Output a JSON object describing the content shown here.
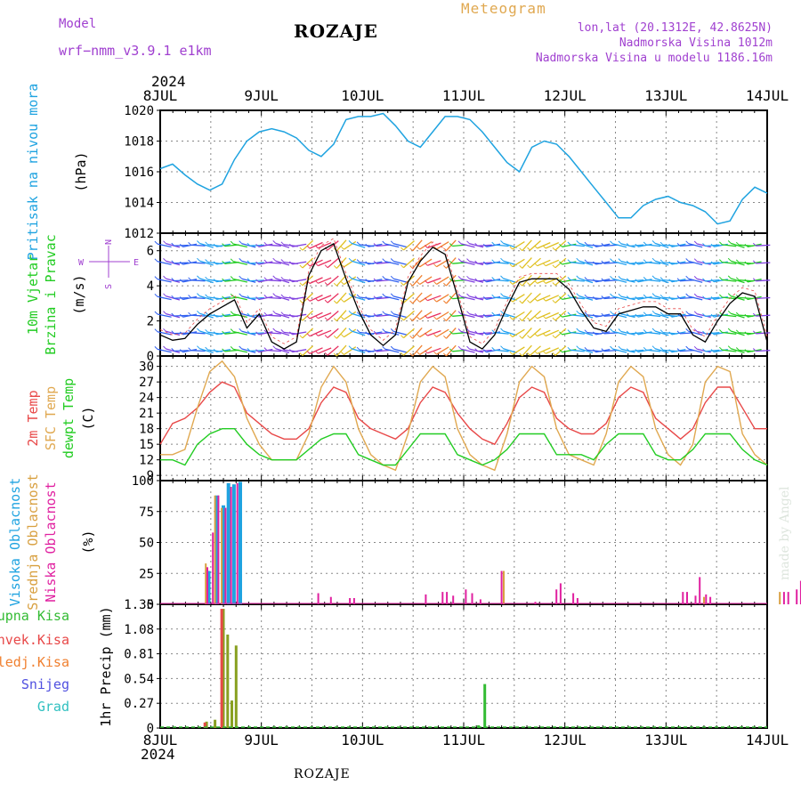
{
  "header": {
    "model_label": "Model",
    "model_name": "wrf−nmm_v3.9.1  e1km",
    "station": "ROZAJE",
    "product": "Meteogram",
    "coords": "lon,lat (20.1312E, 42.8625N)",
    "elevation": "Nadmorska Visina 1012m",
    "model_elevation": "Nadmorska Visina u modelu 1186.16m",
    "year_top": "2024",
    "year_bottom": "2024",
    "footer_station": "ROZAJE",
    "credit": "made by Angel"
  },
  "colors": {
    "pressure": "#1fa3e0",
    "temp2m": "#e84848",
    "sfc_temp": "#e0a850",
    "dewpoint": "#22cc22",
    "high_cloud": "#1fa3e0",
    "mid_cloud": "#d8a040",
    "low_cloud": "#e020a0",
    "total_precip": "#33bb33",
    "conv_precip": "#e84848",
    "frozen_precip": "#f08030",
    "snow": "#5050e0",
    "hail": "#30c0c0",
    "wind_label": "#22cc22",
    "axis_label_purple": "#a040d0"
  },
  "chart_data": [
    {
      "type": "line",
      "title": "Pritisak na nivou mora",
      "ylabel": "(hPa)",
      "x_labels": [
        "8JUL",
        "9JUL",
        "10JUL",
        "11JUL",
        "12JUL",
        "13JUL",
        "14JUL"
      ],
      "ylim": [
        1012,
        1020
      ],
      "yticks": [
        1012,
        1014,
        1016,
        1018,
        1020
      ],
      "series": [
        {
          "name": "Pritisak na nivou mora",
          "values": [
            1016.2,
            1016.5,
            1015.8,
            1015.2,
            1014.8,
            1015.2,
            1016.8,
            1018.0,
            1018.6,
            1018.8,
            1018.6,
            1018.2,
            1017.4,
            1017.0,
            1017.8,
            1019.4,
            1019.6,
            1019.6,
            1019.8,
            1019.0,
            1018.0,
            1017.6,
            1018.6,
            1019.6,
            1019.6,
            1019.4,
            1018.6,
            1017.6,
            1016.6,
            1016.0,
            1017.6,
            1018.0,
            1017.8,
            1017.0,
            1016.0,
            1015.0,
            1014.0,
            1013.0,
            1013.0,
            1013.8,
            1014.2,
            1014.4,
            1014.0,
            1013.8,
            1013.4,
            1012.6,
            1012.8,
            1014.2,
            1015.0,
            1014.6
          ]
        }
      ]
    },
    {
      "type": "line",
      "title": "10m Vjetar Brzina i Pravac",
      "ylabel": "(m/s)",
      "compass": [
        "N",
        "W",
        "E",
        "S"
      ],
      "x_labels": [
        "8JUL",
        "9JUL",
        "10JUL",
        "11JUL",
        "12JUL",
        "13JUL",
        "14JUL"
      ],
      "ylim": [
        0,
        7
      ],
      "yticks": [
        0,
        2,
        4,
        6
      ],
      "series": [
        {
          "name": "10m Vjetar",
          "values": [
            1.2,
            0.9,
            1.0,
            1.8,
            2.4,
            2.8,
            3.2,
            1.6,
            2.4,
            0.8,
            0.4,
            0.8,
            4.6,
            6.0,
            6.4,
            4.4,
            2.6,
            1.2,
            0.6,
            1.2,
            4.2,
            5.4,
            6.2,
            5.8,
            3.4,
            0.8,
            0.4,
            1.2,
            2.8,
            4.2,
            4.4,
            4.4,
            4.4,
            3.8,
            2.6,
            1.6,
            1.4,
            2.4,
            2.6,
            2.8,
            2.8,
            2.4,
            2.4,
            1.2,
            0.8,
            2.0,
            3.0,
            3.6,
            3.4,
            0.8
          ]
        }
      ]
    },
    {
      "type": "line",
      "ylabel": "(C)",
      "x_labels": [
        "8JUL",
        "9JUL",
        "10JUL",
        "11JUL",
        "12JUL",
        "13JUL",
        "14JUL"
      ],
      "ylim": [
        8,
        32
      ],
      "yticks": [
        9,
        12,
        15,
        18,
        21,
        24,
        27,
        30
      ],
      "series": [
        {
          "name": "2m Temp",
          "values": [
            15,
            19,
            20,
            22,
            25,
            27,
            26,
            21,
            19,
            17,
            16,
            16,
            18,
            23,
            26,
            25,
            20,
            18,
            17,
            16,
            18,
            23,
            26,
            25,
            21,
            18,
            16,
            15,
            19,
            24,
            26,
            25,
            20,
            18,
            17,
            17,
            19,
            24,
            26,
            25,
            20,
            18,
            16,
            18,
            23,
            26,
            26,
            22,
            18,
            18
          ]
        },
        {
          "name": "SFC Temp",
          "values": [
            13,
            13,
            14,
            22,
            29,
            31,
            28,
            20,
            15,
            12,
            12,
            12,
            17,
            26,
            30,
            27,
            18,
            13,
            11,
            10,
            17,
            27,
            30,
            28,
            18,
            13,
            11,
            10,
            17,
            27,
            30,
            28,
            18,
            13,
            12,
            11,
            17,
            27,
            30,
            28,
            18,
            13,
            11,
            15,
            27,
            30,
            29,
            17,
            13,
            11
          ]
        },
        {
          "name": "dewpt Temp",
          "values": [
            12,
            12,
            11,
            15,
            17,
            18,
            18,
            15,
            13,
            12,
            12,
            12,
            14,
            16,
            17,
            17,
            13,
            12,
            11,
            11,
            14,
            17,
            17,
            17,
            13,
            12,
            11,
            12,
            14,
            17,
            17,
            17,
            13,
            13,
            13,
            12,
            15,
            17,
            17,
            17,
            13,
            12,
            12,
            14,
            17,
            17,
            17,
            14,
            12,
            11
          ]
        }
      ]
    },
    {
      "type": "bar",
      "ylabel": "(%)",
      "x_labels": [
        "8JUL",
        "9JUL",
        "10JUL",
        "11JUL",
        "12JUL",
        "13JUL",
        "14JUL"
      ],
      "ylim": [
        0,
        100
      ],
      "yticks": [
        0,
        25,
        50,
        75,
        100
      ],
      "series": [
        {
          "name": "Visoka Oblacnost",
          "bars": [
            {
              "t": 11.5,
              "v": 27
            },
            {
              "t": 13.5,
              "v": 88
            },
            {
              "t": 15,
              "v": 80
            },
            {
              "t": 16.2,
              "v": 98
            },
            {
              "t": 17.5,
              "v": 97
            },
            {
              "t": 19,
              "v": 99
            }
          ]
        },
        {
          "name": "Srednja Oblacnost",
          "bars": [
            {
              "t": 10.8,
              "v": 33
            },
            {
              "t": 13,
              "v": 88
            },
            {
              "t": 14.6,
              "v": 78
            },
            {
              "t": 81.5,
              "v": 27
            },
            {
              "t": 129,
              "v": 6
            },
            {
              "t": 147,
              "v": 10
            }
          ]
        },
        {
          "name": "Niska Oblacnost",
          "bars": [
            {
              "t": 11.2,
              "v": 30
            },
            {
              "t": 12.5,
              "v": 58
            },
            {
              "t": 13.8,
              "v": 88
            },
            {
              "t": 15.5,
              "v": 78
            },
            {
              "t": 16.8,
              "v": 95
            },
            {
              "t": 18.3,
              "v": 98
            },
            {
              "t": 37.5,
              "v": 9
            },
            {
              "t": 40.5,
              "v": 6
            },
            {
              "t": 45,
              "v": 5
            },
            {
              "t": 46,
              "v": 5
            },
            {
              "t": 63,
              "v": 8
            },
            {
              "t": 67,
              "v": 10
            },
            {
              "t": 68,
              "v": 10
            },
            {
              "t": 69.5,
              "v": 7
            },
            {
              "t": 72.5,
              "v": 12
            },
            {
              "t": 74,
              "v": 9
            },
            {
              "t": 76,
              "v": 4
            },
            {
              "t": 81,
              "v": 27
            },
            {
              "t": 89,
              "v": 2
            },
            {
              "t": 94,
              "v": 12
            },
            {
              "t": 95,
              "v": 17
            },
            {
              "t": 98,
              "v": 9
            },
            {
              "t": 99,
              "v": 5
            },
            {
              "t": 124,
              "v": 10
            },
            {
              "t": 125,
              "v": 10
            },
            {
              "t": 127,
              "v": 7
            },
            {
              "t": 128,
              "v": 22
            },
            {
              "t": 129.5,
              "v": 8
            },
            {
              "t": 130.5,
              "v": 6
            },
            {
              "t": 148,
              "v": 10
            },
            {
              "t": 149,
              "v": 10
            },
            {
              "t": 151,
              "v": 12
            },
            {
              "t": 152,
              "v": 19
            }
          ]
        }
      ]
    },
    {
      "type": "bar",
      "ylabel": "1hr Precip (mm)",
      "x_labels": [
        "8JUL",
        "9JUL",
        "10JUL",
        "11JUL",
        "12JUL",
        "13JUL",
        "14JUL"
      ],
      "ylim": [
        0,
        1.35
      ],
      "yticks": [
        0,
        0.27,
        0.54,
        0.81,
        1.08,
        1.35
      ],
      "series": [
        {
          "name": "Ukupna Kisa",
          "bars": [
            {
              "t": 11,
              "v": 0.07
            },
            {
              "t": 13,
              "v": 0.09
            },
            {
              "t": 15,
              "v": 1.3
            },
            {
              "t": 16,
              "v": 1.02
            },
            {
              "t": 17,
              "v": 0.3
            },
            {
              "t": 18,
              "v": 0.9
            },
            {
              "t": 75.5,
              "v": 0.03
            },
            {
              "t": 77,
              "v": 0.48
            }
          ]
        },
        {
          "name": "Konvek.Kisa",
          "bars": [
            {
              "t": 10.6,
              "v": 0.06
            },
            {
              "t": 14.6,
              "v": 1.3
            }
          ]
        },
        {
          "name": "Zaledj.Kisa",
          "bars": []
        },
        {
          "name": "Snijeg",
          "bars": []
        },
        {
          "name": "Grad",
          "bars": []
        }
      ]
    }
  ]
}
